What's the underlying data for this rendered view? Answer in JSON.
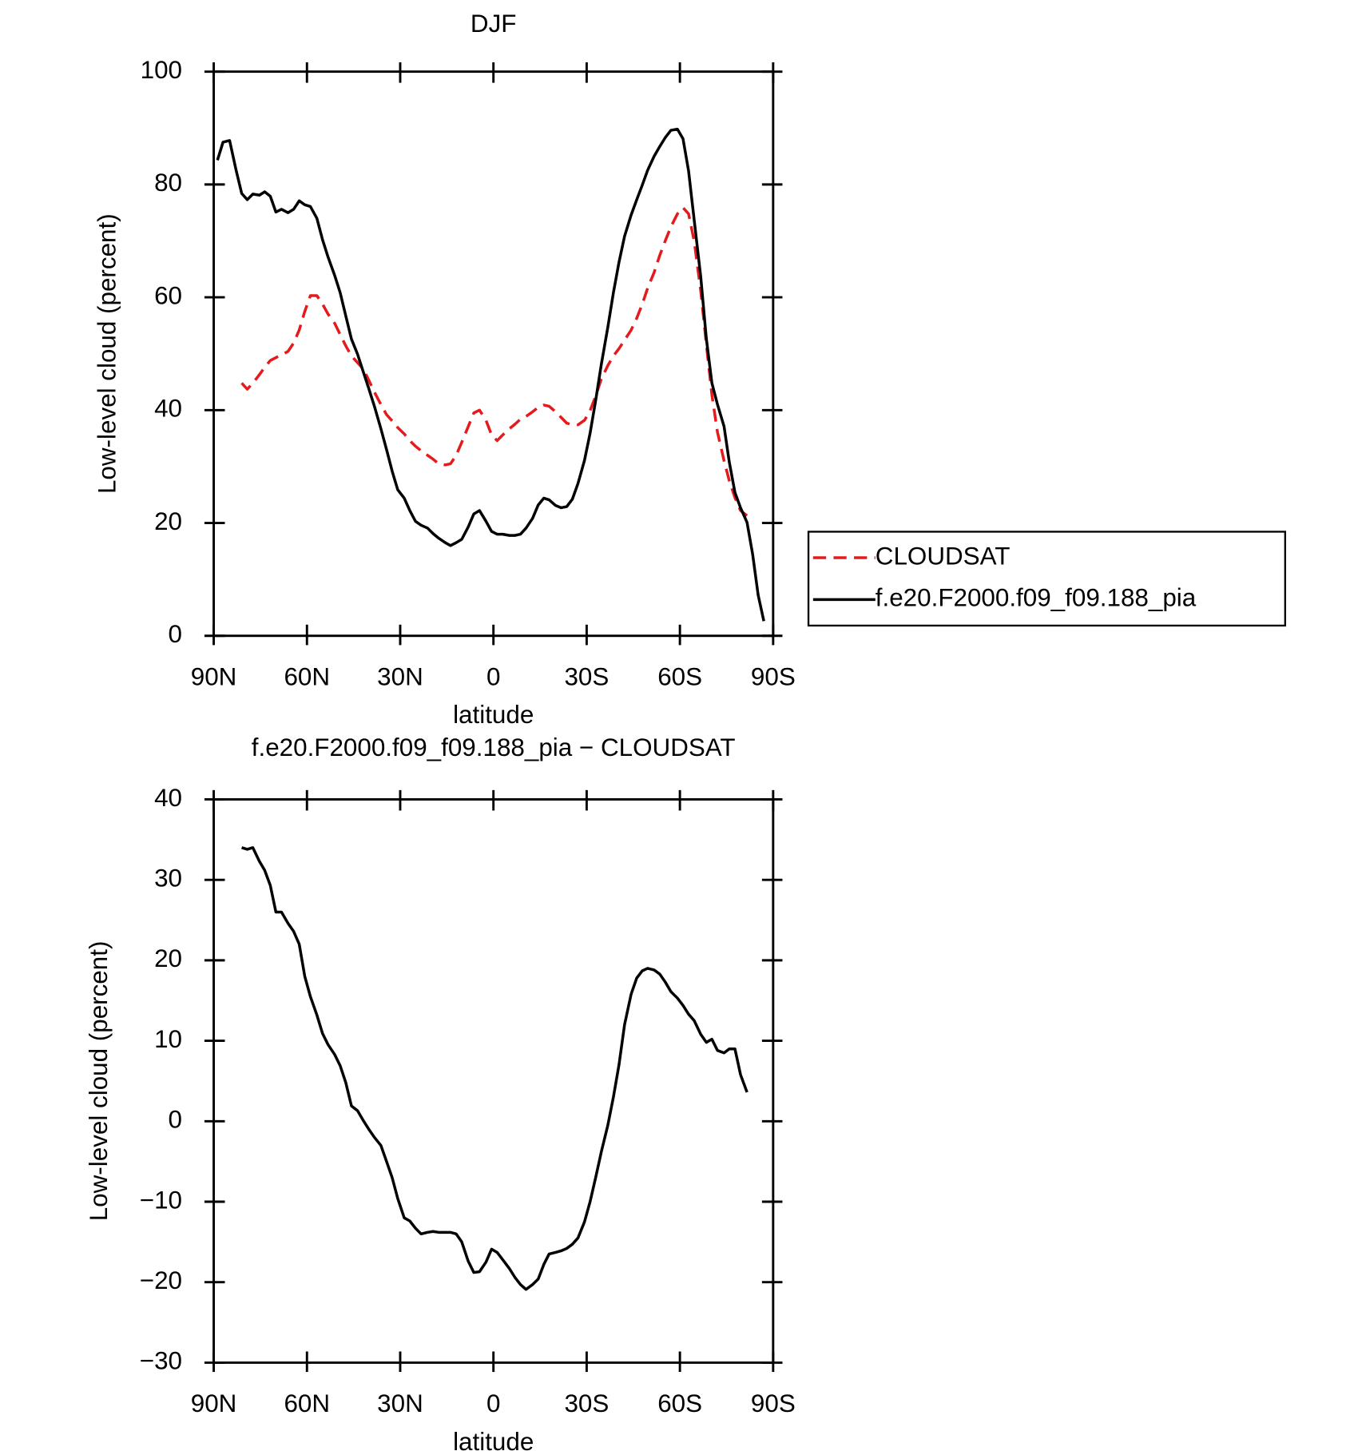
{
  "chart_data": [
    {
      "type": "line",
      "title": "DJF",
      "xlabel": "latitude",
      "ylabel": "Low-level cloud (percent)",
      "xlim": [
        90,
        -90
      ],
      "xticks": [
        {
          "value": 90,
          "label": "90N"
        },
        {
          "value": 60,
          "label": "60N"
        },
        {
          "value": 30,
          "label": "30N"
        },
        0,
        {
          "value": -30,
          "label": "30S"
        },
        {
          "value": -60,
          "label": "60S"
        },
        {
          "value": -90,
          "label": "90S"
        }
      ],
      "ylim": [
        0,
        100
      ],
      "yticks": [
        0,
        20,
        40,
        60,
        80,
        100
      ],
      "legend": "right",
      "x": [
        88.8,
        87.0,
        84.9,
        82.8,
        81.0,
        79.2,
        77.4,
        75.3,
        73.6,
        71.8,
        70.0,
        68.2,
        66.1,
        64.3,
        62.5,
        60.7,
        58.9,
        56.8,
        55.0,
        53.2,
        51.1,
        49.3,
        47.5,
        45.7,
        43.7,
        41.9,
        40.1,
        38.3,
        36.2,
        34.4,
        32.6,
        30.8,
        28.7,
        26.9,
        25.1,
        23.3,
        21.2,
        19.4,
        17.6,
        15.5,
        13.8,
        12.0,
        10.2,
        8.1,
        6.3,
        4.5,
        2.4,
        0.6,
        -1.2,
        -3.0,
        -5.1,
        -6.9,
        -8.7,
        -10.5,
        -12.6,
        -14.4,
        -16.2,
        -17.9,
        -20.0,
        -21.8,
        -23.6,
        -25.4,
        -27.2,
        -29.3,
        -31.1,
        -32.9,
        -34.7,
        -36.8,
        -38.6,
        -40.4,
        -42.2,
        -44.3,
        -46.1,
        -47.9,
        -49.6,
        -51.7,
        -53.5,
        -55.3,
        -57.1,
        -59.2,
        -61.0,
        -62.8,
        -64.6,
        -66.7,
        -68.5,
        -70.3,
        -72.1,
        -74.2,
        -75.9,
        -77.7,
        -79.5,
        -81.6,
        -83.4,
        -85.2,
        -87.0
      ],
      "series": [
        {
          "name": "CLOUDSAT",
          "color": "#e41a1c",
          "linestyle": "dashed",
          "values": [
            null,
            null,
            null,
            null,
            44.8,
            43.7,
            44.8,
            46.3,
            47.6,
            48.8,
            49.3,
            49.8,
            50.4,
            51.9,
            54.2,
            57.5,
            60.3,
            60.3,
            58.8,
            57.0,
            55.4,
            53.4,
            51.4,
            49.6,
            48.4,
            47.3,
            45.3,
            43.2,
            41.0,
            39.2,
            38.1,
            36.9,
            35.8,
            34.6,
            33.6,
            32.8,
            32.0,
            31.3,
            30.5,
            30.3,
            30.5,
            32.0,
            34.3,
            37.1,
            39.5,
            40.0,
            38.2,
            35.6,
            34.6,
            35.6,
            36.7,
            37.5,
            38.4,
            38.9,
            39.7,
            40.5,
            40.9,
            40.7,
            39.7,
            38.7,
            37.7,
            37.4,
            37.4,
            38.2,
            39.9,
            42.5,
            45.5,
            47.9,
            49.6,
            50.9,
            52.4,
            54.2,
            56.3,
            58.8,
            61.6,
            64.4,
            67.4,
            70.0,
            72.5,
            74.8,
            75.9,
            74.8,
            69.9,
            61.1,
            51.7,
            42.7,
            36.1,
            31.0,
            27.5,
            24.5,
            22.2,
            21.3,
            null,
            null,
            null
          ]
        },
        {
          "name": "f.e20.F2000.f09_f09.188_pia",
          "color": "#000000",
          "linestyle": "solid",
          "values": [
            84.3,
            87.5,
            87.8,
            82.5,
            78.4,
            77.3,
            78.3,
            78.1,
            78.7,
            77.9,
            75.1,
            75.6,
            75.0,
            75.6,
            77.1,
            76.4,
            76.1,
            74.0,
            70.2,
            67.1,
            63.9,
            60.8,
            56.7,
            52.6,
            49.9,
            46.8,
            43.8,
            40.7,
            36.7,
            33.0,
            29.2,
            25.9,
            24.4,
            22.2,
            20.3,
            19.6,
            19.1,
            18.1,
            17.3,
            16.5,
            16.0,
            16.5,
            17.1,
            19.3,
            21.6,
            22.2,
            20.3,
            18.5,
            18.0,
            18.0,
            17.8,
            17.8,
            18.0,
            19.1,
            20.8,
            23.2,
            24.4,
            24.1,
            23.1,
            22.7,
            22.9,
            24.2,
            27.0,
            31.1,
            35.9,
            41.7,
            48.1,
            54.7,
            60.8,
            66.2,
            70.8,
            74.6,
            77.3,
            79.9,
            82.5,
            85.0,
            86.7,
            88.3,
            89.6,
            89.8,
            88.1,
            82.4,
            73.6,
            63.6,
            52.7,
            44.8,
            41.0,
            37.1,
            30.8,
            25.4,
            22.7,
            20.1,
            14.5,
            7.2,
            2.6
          ]
        }
      ]
    },
    {
      "type": "line",
      "title": "f.e20.F2000.f09_f09.188_pia − CLOUDSAT",
      "xlabel": "latitude",
      "ylabel": "Low-level cloud (percent)",
      "xlim": [
        90,
        -90
      ],
      "xticks": [
        {
          "value": 90,
          "label": "90N"
        },
        {
          "value": 60,
          "label": "60N"
        },
        {
          "value": 30,
          "label": "30N"
        },
        0,
        {
          "value": -30,
          "label": "30S"
        },
        {
          "value": -60,
          "label": "60S"
        },
        {
          "value": -90,
          "label": "90S"
        }
      ],
      "ylim": [
        -30,
        40
      ],
      "yticks": [
        {
          "value": -30,
          "label": "−30"
        },
        {
          "value": -20,
          "label": "−20"
        },
        {
          "value": -10,
          "label": "−10"
        },
        0,
        10,
        20,
        30,
        40
      ],
      "x": [
        81.0,
        79.2,
        77.4,
        75.3,
        73.6,
        71.8,
        70.0,
        68.2,
        66.1,
        64.3,
        62.5,
        60.7,
        58.9,
        56.8,
        55.0,
        53.2,
        51.1,
        49.3,
        47.5,
        45.7,
        43.7,
        41.9,
        40.1,
        38.3,
        36.2,
        34.4,
        32.6,
        30.8,
        28.7,
        26.9,
        25.1,
        23.3,
        21.2,
        19.4,
        17.6,
        15.5,
        13.8,
        12.0,
        10.2,
        8.1,
        6.3,
        4.5,
        2.4,
        0.6,
        -1.2,
        -3.0,
        -5.1,
        -6.9,
        -8.7,
        -10.5,
        -12.6,
        -14.4,
        -16.2,
        -17.9,
        -20.0,
        -21.8,
        -23.6,
        -25.4,
        -27.2,
        -29.3,
        -31.1,
        -32.9,
        -34.7,
        -36.8,
        -38.6,
        -40.4,
        -42.2,
        -44.3,
        -46.1,
        -47.9,
        -49.6,
        -51.7,
        -53.5,
        -55.3,
        -57.1,
        -59.2,
        -61.0,
        -62.8,
        -64.6,
        -66.7,
        -68.5,
        -70.3,
        -72.1,
        -74.2,
        -75.9,
        -77.7,
        -79.5,
        -81.6
      ],
      "series": [
        {
          "color": "#000000",
          "linestyle": "solid",
          "values": [
            34.0,
            33.8,
            34.0,
            32.3,
            31.2,
            29.3,
            26.0,
            26.0,
            24.6,
            23.6,
            22.0,
            18.0,
            15.5,
            13.2,
            10.9,
            9.5,
            8.3,
            6.9,
            4.8,
            1.9,
            1.3,
            0.1,
            -1.0,
            -2.0,
            -3.0,
            -5.0,
            -7.0,
            -9.6,
            -12.0,
            -12.4,
            -13.3,
            -14.0,
            -13.8,
            -13.7,
            -13.8,
            -13.8,
            -13.8,
            -14.0,
            -15.0,
            -17.4,
            -18.8,
            -18.7,
            -17.5,
            -15.9,
            -16.3,
            -17.2,
            -18.3,
            -19.4,
            -20.3,
            -20.9,
            -20.3,
            -19.6,
            -17.8,
            -16.5,
            -16.3,
            -16.1,
            -15.8,
            -15.3,
            -14.5,
            -12.5,
            -10.0,
            -7.0,
            -3.8,
            -0.5,
            3.0,
            7.0,
            12.0,
            15.8,
            17.8,
            18.7,
            19.0,
            18.8,
            18.3,
            17.3,
            16.1,
            15.3,
            14.4,
            13.3,
            12.5,
            10.8,
            9.8,
            10.2,
            8.8,
            8.5,
            9.0,
            9.0,
            5.8,
            3.6
          ]
        }
      ]
    }
  ]
}
